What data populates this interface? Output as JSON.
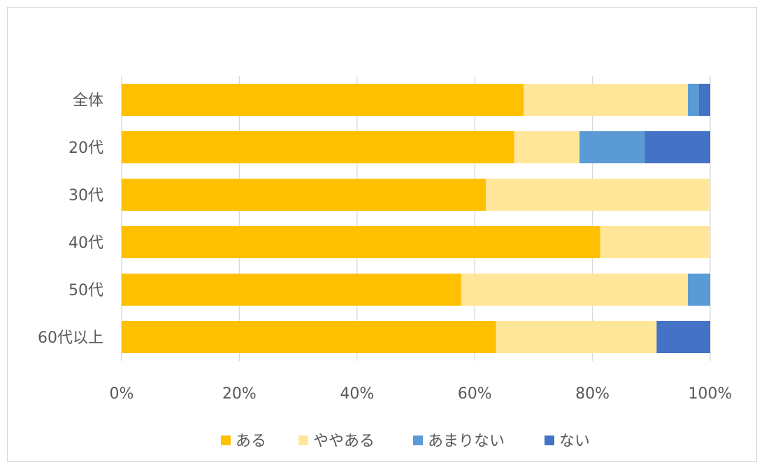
{
  "chart_data": {
    "type": "bar",
    "orientation": "horizontal",
    "stacked": "percent",
    "categories": [
      "全体",
      "20代",
      "30代",
      "40代",
      "50代",
      "60代以上"
    ],
    "series": [
      {
        "name": "ある",
        "color": "#FFC000",
        "values": [
          68.3,
          66.7,
          61.9,
          81.3,
          57.7,
          63.6
        ]
      },
      {
        "name": "ややある",
        "color": "#FFE699",
        "values": [
          27.9,
          11.1,
          38.1,
          18.7,
          38.5,
          27.3
        ]
      },
      {
        "name": "あまりない",
        "color": "#5B9BD5",
        "values": [
          1.9,
          11.1,
          0,
          0,
          3.8,
          0
        ]
      },
      {
        "name": "ない",
        "color": "#4472C4",
        "values": [
          1.9,
          11.1,
          0,
          0,
          0,
          9.1
        ]
      }
    ],
    "x_ticks": [
      "0%",
      "20%",
      "40%",
      "60%",
      "80%",
      "100%"
    ],
    "xlim": [
      0,
      100
    ],
    "grid": true,
    "legend": "bottom"
  }
}
